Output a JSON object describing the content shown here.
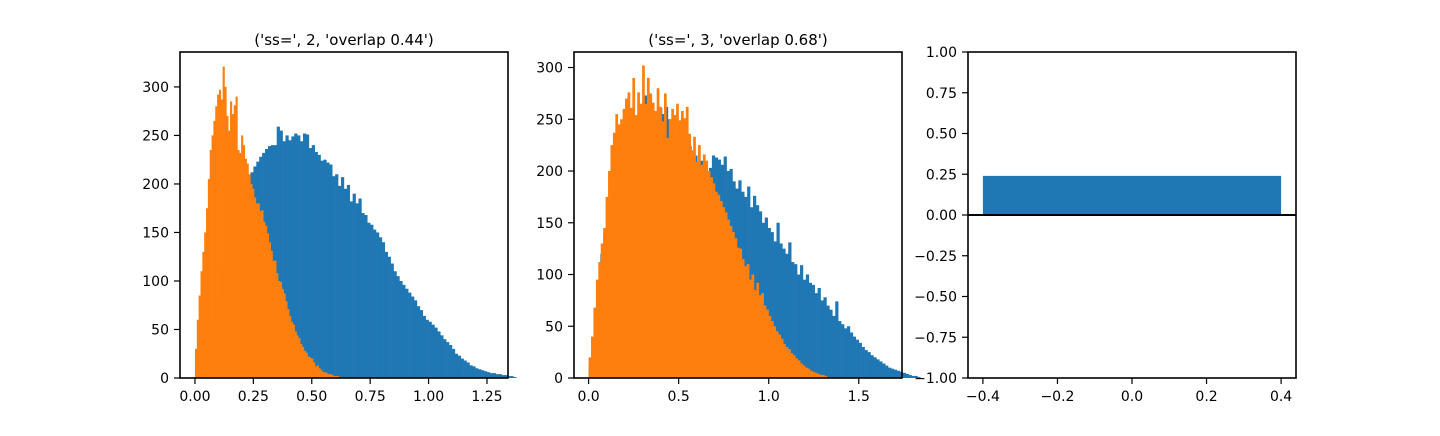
{
  "colors": {
    "blue": "#1f77b4",
    "orange": "#ff7f0e",
    "axis": "#000000"
  },
  "chart_data": [
    {
      "type": "bar",
      "subtype": "overlaid-histogram",
      "title": "('ss=', 2, 'overlap 0.44')",
      "xlabel": "",
      "ylabel": "",
      "xlim": [
        -0.064,
        1.34
      ],
      "ylim": [
        0,
        336
      ],
      "xticks": [
        "0.00",
        "0.25",
        "0.50",
        "0.75",
        "1.00",
        "1.25"
      ],
      "yticks": [
        "0",
        "50",
        "100",
        "150",
        "200",
        "250",
        "300"
      ],
      "grid": false,
      "series": [
        {
          "color": "#1f77b4",
          "bin_start": 0.0,
          "bin_width": 0.0125,
          "values": [
            8,
            16,
            24,
            32,
            40,
            55,
            68,
            82,
            95,
            110,
            122,
            135,
            148,
            160,
            172,
            182,
            190,
            198,
            205,
            212,
            218,
            223,
            228,
            232,
            236,
            239,
            240,
            240,
            259,
            255,
            244,
            250,
            245,
            249,
            252,
            250,
            244,
            252,
            251,
            237,
            240,
            233,
            230,
            224,
            225,
            222,
            220,
            208,
            210,
            198,
            207,
            195,
            199,
            182,
            190,
            180,
            185,
            170,
            168,
            160,
            158,
            153,
            150,
            145,
            140,
            130,
            125,
            118,
            110,
            105,
            100,
            96,
            92,
            88,
            84,
            80,
            74,
            70,
            64,
            60,
            58,
            55,
            52,
            48,
            44,
            40,
            37,
            34,
            30,
            25,
            23,
            20,
            18,
            16,
            13,
            12,
            10,
            9,
            8,
            7,
            6,
            5,
            5,
            4,
            4,
            3,
            3,
            2,
            2,
            1
          ]
        },
        {
          "color": "#ff7f0e",
          "bin_start": 0.0,
          "bin_width": 0.0079,
          "values": [
            30,
            60,
            85,
            110,
            130,
            150,
            175,
            205,
            235,
            250,
            265,
            280,
            292,
            297,
            287,
            321,
            300,
            270,
            255,
            285,
            272,
            281,
            290,
            235,
            232,
            250,
            240,
            226,
            221,
            210,
            200,
            195,
            186,
            180,
            180,
            172,
            173,
            161,
            157,
            149,
            140,
            131,
            121,
            121,
            108,
            100,
            99,
            92,
            87,
            79,
            71,
            64,
            58,
            55,
            48,
            44,
            41,
            35,
            32,
            28,
            26,
            22,
            21,
            20,
            16,
            12,
            13,
            10,
            8,
            6,
            6,
            5,
            4,
            4,
            3,
            2,
            2,
            2,
            1,
            1
          ]
        }
      ]
    },
    {
      "type": "bar",
      "subtype": "overlaid-histogram",
      "title": "('ss=', 3, 'overlap 0.68')",
      "xlabel": "",
      "ylabel": "",
      "xlim": [
        -0.081,
        1.74
      ],
      "ylim": [
        0,
        315
      ],
      "xticks": [
        "0.0",
        "0.5",
        "1.0",
        "1.5"
      ],
      "yticks": [
        "0",
        "50",
        "100",
        "150",
        "200",
        "250",
        "300"
      ],
      "grid": false,
      "series": [
        {
          "color": "#1f77b4",
          "bin_start": 0.0,
          "bin_width": 0.0163,
          "values": [
            12,
            35,
            60,
            90,
            120,
            140,
            158,
            175,
            188,
            200,
            212,
            222,
            232,
            238,
            242,
            246,
            250,
            252,
            262,
            273,
            260,
            225,
            240,
            245,
            261,
            255,
            262,
            250,
            249,
            231,
            243,
            230,
            228,
            220,
            224,
            210,
            215,
            205,
            210,
            195,
            200,
            203,
            215,
            213,
            211,
            206,
            214,
            200,
            202,
            190,
            183,
            191,
            180,
            175,
            185,
            165,
            176,
            167,
            161,
            150,
            155,
            145,
            141,
            132,
            150,
            130,
            125,
            120,
            131,
            112,
            110,
            100,
            109,
            95,
            100,
            92,
            90,
            82,
            87,
            75,
            78,
            70,
            66,
            60,
            74,
            55,
            52,
            48,
            50,
            44,
            40,
            37,
            34,
            30,
            27,
            25,
            22,
            20,
            18,
            16,
            14,
            12,
            10,
            9,
            8,
            7,
            6,
            5,
            4,
            3,
            2,
            2,
            1
          ]
        },
        {
          "color": "#ff7f0e",
          "bin_start": 0.0,
          "bin_width": 0.0135,
          "values": [
            20,
            40,
            68,
            95,
            112,
            130,
            145,
            175,
            200,
            225,
            237,
            255,
            245,
            250,
            260,
            270,
            276,
            261,
            290,
            254,
            276,
            265,
            302,
            265,
            290,
            275,
            266,
            258,
            280,
            262,
            248,
            275,
            232,
            250,
            260,
            254,
            265,
            249,
            258,
            251,
            262,
            236,
            220,
            233,
            209,
            225,
            206,
            216,
            210,
            200,
            194,
            188,
            180,
            177,
            171,
            165,
            160,
            153,
            147,
            141,
            135,
            126,
            125,
            115,
            108,
            110,
            95,
            100,
            85,
            92,
            80,
            82,
            70,
            66,
            60,
            55,
            50,
            45,
            42,
            38,
            33,
            30,
            28,
            24,
            22,
            19,
            17,
            14,
            12,
            10,
            9,
            7,
            6,
            5,
            4,
            3,
            3,
            2,
            1,
            1
          ]
        }
      ]
    },
    {
      "type": "bar",
      "title": "",
      "xlabel": "",
      "ylabel": "",
      "xlim": [
        -0.44,
        0.44
      ],
      "ylim": [
        -1.0,
        1.0
      ],
      "xticks": [
        "−0.4",
        "−0.2",
        "0.0",
        "0.2",
        "0.4"
      ],
      "yticks": [
        "−1.00",
        "−0.75",
        "−0.50",
        "−0.25",
        "0.00",
        "0.25",
        "0.50",
        "0.75",
        "1.00"
      ],
      "grid": false,
      "hline": 0,
      "categories": [
        0
      ],
      "series": [
        {
          "color": "#1f77b4",
          "values": [
            0.24
          ],
          "bar_width": 0.8
        }
      ]
    }
  ]
}
